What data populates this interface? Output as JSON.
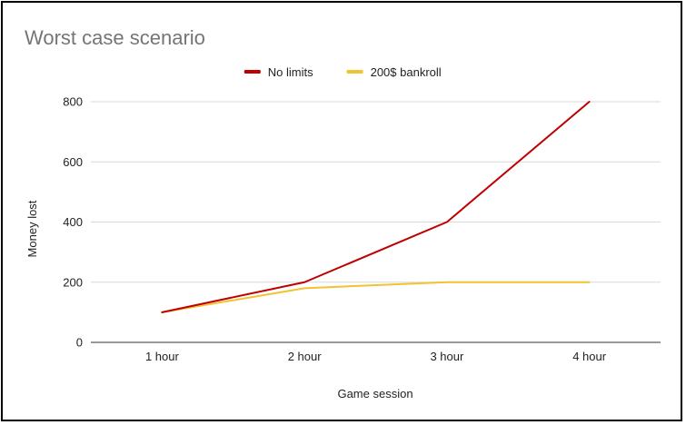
{
  "chart_data": {
    "type": "line",
    "title": "Worst case scenario",
    "xlabel": "Game session",
    "ylabel": "Money lost",
    "categories": [
      "1 hour",
      "2 hour",
      "3 hour",
      "4 hour"
    ],
    "ylim": [
      0,
      800
    ],
    "yticks": [
      0,
      200,
      400,
      600,
      800
    ],
    "grid": true,
    "legend_position": "top",
    "series": [
      {
        "name": "No limits",
        "color": "#c00000",
        "values": [
          100,
          200,
          400,
          800
        ]
      },
      {
        "name": "200$ bankroll",
        "color": "#f1c232",
        "values": [
          100,
          180,
          200,
          200
        ]
      }
    ]
  }
}
